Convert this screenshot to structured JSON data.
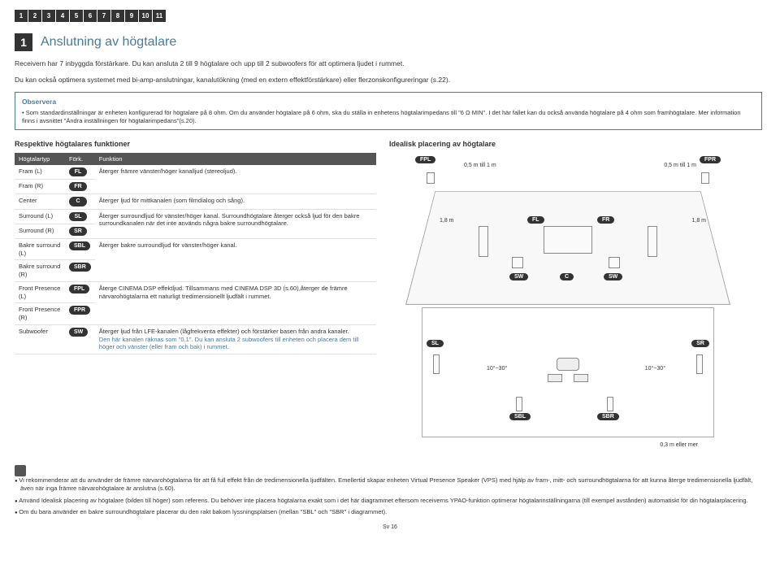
{
  "nav": [
    "1",
    "2",
    "3",
    "4",
    "5",
    "6",
    "7",
    "8",
    "9",
    "10",
    "11"
  ],
  "section_num": "1",
  "section_title": "Anslutning av högtalare",
  "intro1": "Receivern har 7 inbyggda förstärkare. Du kan ansluta 2 till 9 högtalare och upp till 2 subwoofers för att optimera ljudet i rummet.",
  "intro2": "Du kan också optimera systemet med bi-amp-anslutningar, kanalutökning (med en extern effektförstärkare) eller flerzonskonfigureringar (s.22).",
  "obs_title": "Observera",
  "obs_text": "Som standardinställningar är enheten konfigurerad för högtalare på 8 ohm. Om du använder högtalare på 6 ohm, ska du ställa in enhetens högtalarimpedans till \"6 Ω MIN\". I det här fallet kan du också använda högtalare på 4 ohm som framhögtalare. Mer information finns i avsnittet \"Ändra inställningen för högtalarimpedans\"(s.20).",
  "left_title": "Respektive högtalares funktioner",
  "right_title": "Idealisk placering av högtalare",
  "th1": "Högtalartyp",
  "th2": "Förk.",
  "th3": "Funktion",
  "rows": [
    {
      "t": "Fram (L)",
      "a": "FL",
      "f": "Återger främre vänster/höger kanalljud (stereoljud).",
      "span": 2
    },
    {
      "t": "Fram (R)",
      "a": "FR"
    },
    {
      "t": "Center",
      "a": "C",
      "f": "Återger ljud för mittkanalen (som filmdialog och sång).",
      "span": 1
    },
    {
      "t": "Surround (L)",
      "a": "SL",
      "f": "Återger surroundljud för vänster/höger kanal. Surroundhögtalare återger också ljud för den bakre surroundkanalen när det inte används några bakre surroundhögtalare.",
      "span": 2
    },
    {
      "t": "Surround (R)",
      "a": "SR"
    },
    {
      "t": "Bakre surround (L)",
      "a": "SBL",
      "f": "Återger bakre surroundljud för vänster/höger kanal.",
      "span": 2
    },
    {
      "t": "Bakre surround (R)",
      "a": "SBR"
    },
    {
      "t": "Front Presence (L)",
      "a": "FPL",
      "f": "Återge CINEMA DSP effektljud. Tillsammans med CINEMA DSP 3D (s.60),återger de främre närvarohögtalarna ett naturligt tredimensionellt ljudfält i rummet.",
      "span": 2
    },
    {
      "t": "Front Presence (R)",
      "a": "FPR"
    },
    {
      "t": "Subwoofer",
      "a": "SW",
      "f_part1": "Återger ljud från LFE-kanalen (lågfrekventa effekter) och förstärker basen från andra kanaler.",
      "f_part2": "Den här kanalen räknas som \"0.1\". Du kan ansluta 2 subwoofers till enheten och placera dem till höger och vänster (eller fram och bak) i rummet.",
      "span": 1
    }
  ],
  "diagram": {
    "fpl": "FPL",
    "fpr": "FPR",
    "fl": "FL",
    "fr": "FR",
    "c": "C",
    "sl": "SL",
    "sr": "SR",
    "sbl": "SBL",
    "sbr": "SBR",
    "sw": "SW",
    "dist_top": "0,5 m till 1 m",
    "dist_side": "1,8 m",
    "angle": "10°~30°",
    "dist_bottom": "0,3 m eller mer"
  },
  "footer": [
    "Vi rekommenderar att du använder de främre närvarohögtalarna för att få full effekt från de tredimensionella ljudfälten. Emellertid skapar enheten Virtual Presence Speaker (VPS) med hjälp av fram-, mitt- och surroundhögtalarna för att kunna återge tredimensionella ljudfält, även när inga främre närvarohögtalare är anslutna (s.60).",
    "Använd Idealisk placering av högtalare (bilden till höger) som referens. Du behöver inte placera högtalarna exakt som i det här diagrammet eftersom receiverns YPAO-funktion optimerar högtalarinställningarna (till exempel avstånden) automatiskt för din högtalarplacering.",
    "Om du bara använder en bakre surroundhögtalare placerar du den rakt bakom lyssningsplatsen (mellan \"SBL\" och \"SBR\" i diagrammet)."
  ],
  "page": "Sv    16"
}
